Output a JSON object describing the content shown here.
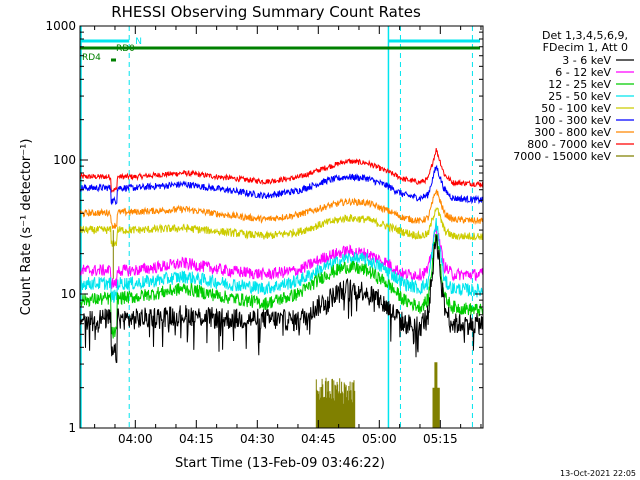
{
  "chart_data": {
    "type": "line",
    "title": "RHESSI Observing Summary Count Rates",
    "xlabel": "Start Time (13-Feb-09 03:46:22)",
    "ylabel": "Count Rate (s⁻¹ detector⁻¹)",
    "y_scale": "log",
    "ylim": [
      1,
      1000
    ],
    "xlim_minutes": [
      226.4,
      325.5
    ],
    "y_ticks": [
      "1",
      "10",
      "100",
      "1000"
    ],
    "x_ticks": [
      {
        "minute": 240,
        "label": "04:00"
      },
      {
        "minute": 255,
        "label": "04:15"
      },
      {
        "minute": 270,
        "label": "04:30"
      },
      {
        "minute": 285,
        "label": "04:45"
      },
      {
        "minute": 300,
        "label": "05:00"
      },
      {
        "minute": 315,
        "label": "05:15"
      }
    ],
    "legend_header": [
      "Det 1,3,4,5,6,9,",
      "FDecim 1, Att 0"
    ],
    "legend_placement": "right",
    "series": [
      {
        "name": "3 - 6 keV",
        "color": "#000000",
        "anchors": [
          [
            226.4,
            6.5
          ],
          [
            240,
            6.5
          ],
          [
            252,
            7
          ],
          [
            262,
            6.5
          ],
          [
            272,
            6.5
          ],
          [
            280,
            6.3
          ],
          [
            287,
            9
          ],
          [
            292,
            11
          ],
          [
            297,
            10.5
          ],
          [
            302,
            8
          ],
          [
            306,
            6
          ],
          [
            310,
            5.8
          ],
          [
            312,
            7
          ],
          [
            314,
            28
          ],
          [
            316,
            8
          ],
          [
            318,
            6
          ],
          [
            325.5,
            6
          ]
        ]
      },
      {
        "name": "6 - 12 keV",
        "color": "#ff00ff",
        "anchors": [
          [
            226.4,
            15
          ],
          [
            240,
            15
          ],
          [
            252,
            17
          ],
          [
            262,
            15
          ],
          [
            272,
            14
          ],
          [
            280,
            15
          ],
          [
            287,
            19
          ],
          [
            292,
            21
          ],
          [
            297,
            20
          ],
          [
            302,
            17
          ],
          [
            306,
            14
          ],
          [
            310,
            14
          ],
          [
            312,
            15
          ],
          [
            314,
            32
          ],
          [
            316,
            16
          ],
          [
            318,
            14
          ],
          [
            325.5,
            14
          ]
        ]
      },
      {
        "name": "12 - 25 keV",
        "color": "#00cc00",
        "anchors": [
          [
            226.4,
            9
          ],
          [
            240,
            9.5
          ],
          [
            252,
            11
          ],
          [
            262,
            9.5
          ],
          [
            272,
            8.5
          ],
          [
            280,
            10
          ],
          [
            287,
            14
          ],
          [
            292,
            16
          ],
          [
            297,
            15
          ],
          [
            302,
            12
          ],
          [
            306,
            9
          ],
          [
            310,
            8
          ],
          [
            312,
            9
          ],
          [
            314,
            30
          ],
          [
            316,
            9.5
          ],
          [
            318,
            8
          ],
          [
            325.5,
            7.5
          ]
        ]
      },
      {
        "name": "25 - 50 keV",
        "color": "#00e5ee",
        "anchors": [
          [
            226.4,
            12
          ],
          [
            240,
            12
          ],
          [
            252,
            13.5
          ],
          [
            262,
            12
          ],
          [
            272,
            11
          ],
          [
            280,
            12.5
          ],
          [
            287,
            16
          ],
          [
            292,
            18.5
          ],
          [
            297,
            18
          ],
          [
            302,
            15
          ],
          [
            306,
            12
          ],
          [
            310,
            11
          ],
          [
            312,
            12
          ],
          [
            314,
            35
          ],
          [
            316,
            12.5
          ],
          [
            318,
            11
          ],
          [
            325.5,
            10.5
          ]
        ]
      },
      {
        "name": "50 - 100 keV",
        "color": "#cccc00",
        "anchors": [
          [
            226.4,
            30
          ],
          [
            240,
            30
          ],
          [
            252,
            31
          ],
          [
            262,
            29
          ],
          [
            272,
            27
          ],
          [
            280,
            29
          ],
          [
            287,
            34
          ],
          [
            292,
            37
          ],
          [
            297,
            36
          ],
          [
            302,
            32
          ],
          [
            306,
            29
          ],
          [
            310,
            27
          ],
          [
            312,
            28
          ],
          [
            314,
            45
          ],
          [
            316,
            30
          ],
          [
            318,
            27
          ],
          [
            325.5,
            27
          ]
        ]
      },
      {
        "name": "100 - 300 keV",
        "color": "#0000ff",
        "anchors": [
          [
            226.4,
            62
          ],
          [
            240,
            62
          ],
          [
            252,
            66
          ],
          [
            262,
            60
          ],
          [
            272,
            54
          ],
          [
            280,
            59
          ],
          [
            287,
            70
          ],
          [
            292,
            75
          ],
          [
            297,
            73
          ],
          [
            302,
            64
          ],
          [
            306,
            55
          ],
          [
            310,
            52
          ],
          [
            312,
            55
          ],
          [
            314,
            90
          ],
          [
            316,
            60
          ],
          [
            318,
            52
          ],
          [
            325.5,
            50
          ]
        ]
      },
      {
        "name": "300 - 800 keV",
        "color": "#ff8800",
        "anchors": [
          [
            226.4,
            40
          ],
          [
            240,
            41
          ],
          [
            252,
            43
          ],
          [
            262,
            39
          ],
          [
            272,
            36
          ],
          [
            280,
            39
          ],
          [
            287,
            45
          ],
          [
            292,
            49
          ],
          [
            297,
            48
          ],
          [
            302,
            42
          ],
          [
            306,
            37
          ],
          [
            310,
            35
          ],
          [
            312,
            37
          ],
          [
            314,
            60
          ],
          [
            316,
            40
          ],
          [
            318,
            36
          ],
          [
            325.5,
            35
          ]
        ]
      },
      {
        "name": "800 - 7000 keV",
        "color": "#ff0000",
        "anchors": [
          [
            226.4,
            75
          ],
          [
            240,
            75
          ],
          [
            252,
            80
          ],
          [
            262,
            74
          ],
          [
            272,
            69
          ],
          [
            280,
            74
          ],
          [
            287,
            88
          ],
          [
            292,
            98
          ],
          [
            297,
            95
          ],
          [
            302,
            82
          ],
          [
            306,
            72
          ],
          [
            310,
            68
          ],
          [
            312,
            72
          ],
          [
            314,
            120
          ],
          [
            316,
            78
          ],
          [
            318,
            68
          ],
          [
            325.5,
            66
          ]
        ]
      },
      {
        "name": "7000 - 15000 keV",
        "color": "#808000",
        "anchors": []
      }
    ],
    "annotations": {
      "flags": [
        {
          "label": "N",
          "color": "#00e5ee",
          "from": 226.4,
          "to": 238.5
        },
        {
          "label": "RD0",
          "color": "#008000",
          "from": 226.4,
          "to": 325.5
        },
        {
          "label": "RD4",
          "color": "#008000",
          "from": 234,
          "to": 235.5
        }
      ],
      "night_boundaries_minutes": [
        238.5,
        305.2,
        322.9
      ]
    }
  },
  "footer_timestamp": "13-Oct-2021 22:05"
}
